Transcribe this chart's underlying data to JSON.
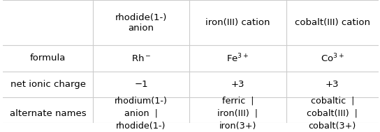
{
  "col_headers": [
    "rhodide(1-)\nanion",
    "iron(III) cation",
    "cobalt(III) cation"
  ],
  "row_headers": [
    "formula",
    "net ionic charge",
    "alternate names"
  ],
  "formula_row": [
    "Rh$^-$",
    "Fe$^{3+}$",
    "Co$^{3+}$"
  ],
  "charge_row": [
    "−1",
    "+3",
    "+3"
  ],
  "names_row": [
    "rhodium(1-)\nanion  |\nrhodide(1-)",
    "ferric  |\niron(III)  |\niron(3+)",
    "cobaltic  |\ncobalt(III)  |\ncobalt(3+)"
  ],
  "bg_color": "#ffffff",
  "text_color": "#000000",
  "line_color": "#cccccc",
  "font_size": 9.5
}
